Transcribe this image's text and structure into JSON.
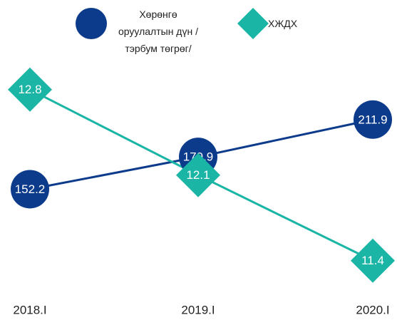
{
  "chart_data": {
    "type": "line",
    "categories": [
      "2018.I",
      "2019.I",
      "2020.I"
    ],
    "series": [
      {
        "name": "Хөрөнгө оруулалтын дүн /тэрбум төгрөг/",
        "color": "#0d3b8c",
        "marker": "circle",
        "values": [
          152.2,
          179.9,
          211.9
        ]
      },
      {
        "name": "ХЖДХ",
        "color": "#1ab5a5",
        "marker": "diamond",
        "axis": "y2",
        "values": [
          12.8,
          12.1,
          11.4
        ]
      }
    ],
    "ylim": [
      70,
      290
    ],
    "y2lim": [
      11.2,
      13.3
    ],
    "grid": false
  }
}
